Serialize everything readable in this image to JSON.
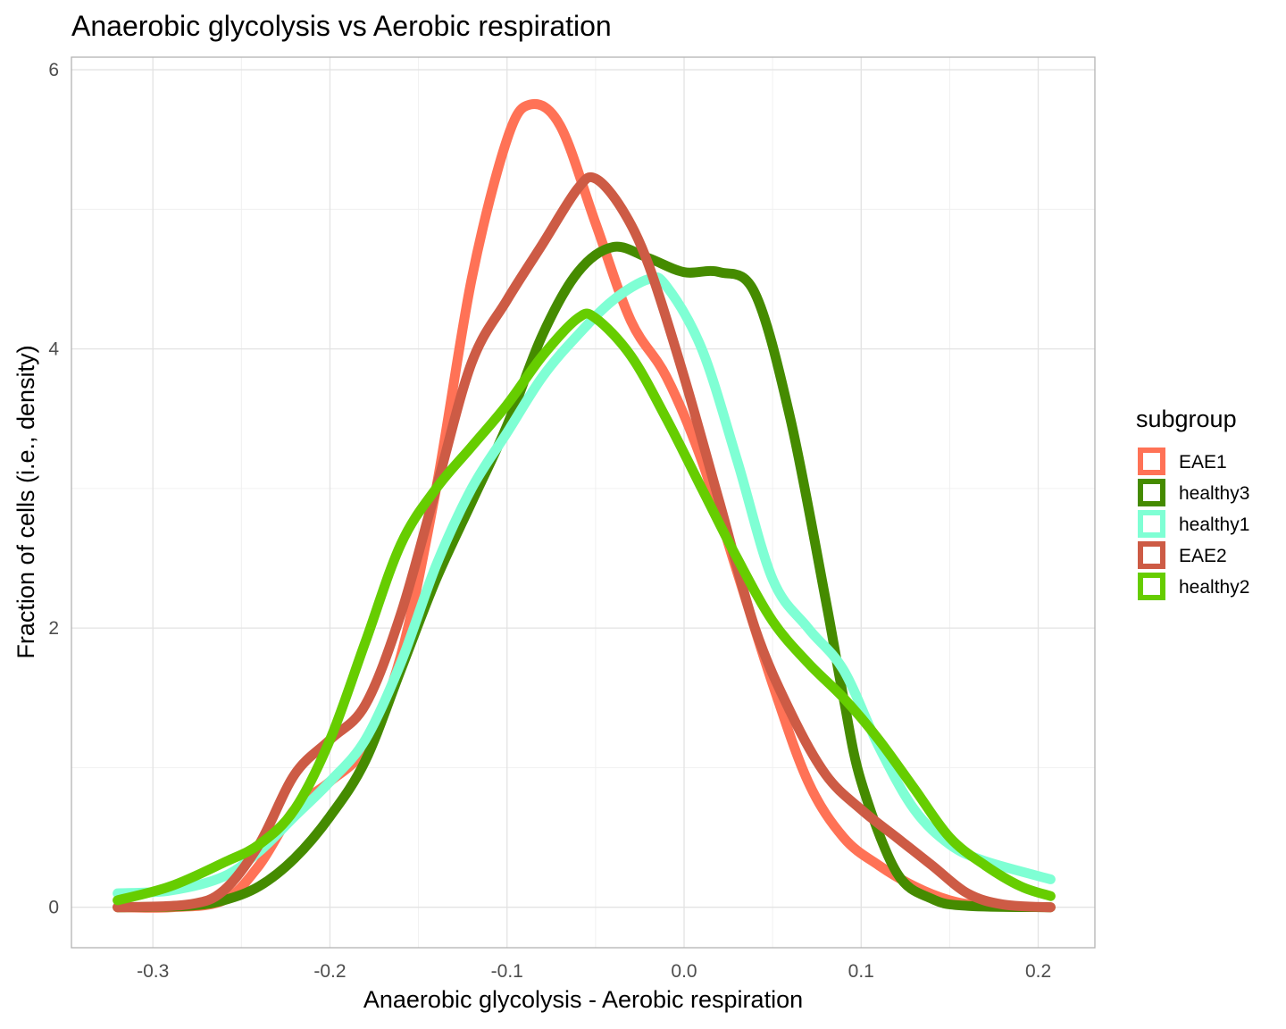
{
  "chart_data": {
    "type": "line",
    "title": "Anaerobic glycolysis vs Aerobic respiration",
    "xlabel": "Anaerobic glycolysis - Aerobic respiration",
    "ylabel": "Fraction of cells (i.e., density)",
    "xlim": [
      -0.346,
      0.232
    ],
    "ylim": [
      -0.29,
      6.09
    ],
    "x_ticks": [
      -0.3,
      -0.2,
      -0.1,
      0.0,
      0.1,
      0.2
    ],
    "x_tick_labels": [
      "-0.3",
      "-0.2",
      "-0.1",
      "0.0",
      "0.1",
      "0.2"
    ],
    "y_ticks": [
      0,
      2,
      4,
      6
    ],
    "y_tick_labels": [
      "0",
      "2",
      "4",
      "6"
    ],
    "grid": true,
    "legend": {
      "title": "subgroup",
      "position": "right"
    },
    "series": [
      {
        "name": "EAE1",
        "color": "#FF7256",
        "points": [
          [
            -0.32,
            0.0
          ],
          [
            -0.29,
            0.0
          ],
          [
            -0.26,
            0.05
          ],
          [
            -0.24,
            0.3
          ],
          [
            -0.22,
            0.7
          ],
          [
            -0.2,
            0.9
          ],
          [
            -0.18,
            1.15
          ],
          [
            -0.16,
            1.8
          ],
          [
            -0.14,
            3.0
          ],
          [
            -0.12,
            4.5
          ],
          [
            -0.1,
            5.5
          ],
          [
            -0.087,
            5.75
          ],
          [
            -0.07,
            5.6
          ],
          [
            -0.05,
            4.9
          ],
          [
            -0.03,
            4.2
          ],
          [
            -0.01,
            3.8
          ],
          [
            0.01,
            3.2
          ],
          [
            0.03,
            2.4
          ],
          [
            0.05,
            1.6
          ],
          [
            0.07,
            0.9
          ],
          [
            0.09,
            0.5
          ],
          [
            0.11,
            0.3
          ],
          [
            0.13,
            0.15
          ],
          [
            0.15,
            0.05
          ],
          [
            0.17,
            0.01
          ],
          [
            0.207,
            0.0
          ]
        ]
      },
      {
        "name": "healthy3",
        "color": "#458B00",
        "points": [
          [
            -0.32,
            0.0
          ],
          [
            -0.28,
            0.01
          ],
          [
            -0.26,
            0.05
          ],
          [
            -0.24,
            0.15
          ],
          [
            -0.22,
            0.35
          ],
          [
            -0.2,
            0.65
          ],
          [
            -0.18,
            1.05
          ],
          [
            -0.16,
            1.7
          ],
          [
            -0.14,
            2.35
          ],
          [
            -0.12,
            2.9
          ],
          [
            -0.1,
            3.45
          ],
          [
            -0.08,
            4.1
          ],
          [
            -0.06,
            4.55
          ],
          [
            -0.04,
            4.73
          ],
          [
            -0.02,
            4.65
          ],
          [
            0.0,
            4.55
          ],
          [
            0.02,
            4.55
          ],
          [
            0.04,
            4.4
          ],
          [
            0.06,
            3.5
          ],
          [
            0.08,
            2.2
          ],
          [
            0.09,
            1.5
          ],
          [
            0.1,
            0.9
          ],
          [
            0.12,
            0.25
          ],
          [
            0.14,
            0.06
          ],
          [
            0.16,
            0.01
          ],
          [
            0.207,
            0.0
          ]
        ]
      },
      {
        "name": "healthy1",
        "color": "#7FFFD4",
        "points": [
          [
            -0.32,
            0.1
          ],
          [
            -0.29,
            0.12
          ],
          [
            -0.26,
            0.22
          ],
          [
            -0.24,
            0.4
          ],
          [
            -0.22,
            0.65
          ],
          [
            -0.2,
            0.9
          ],
          [
            -0.18,
            1.2
          ],
          [
            -0.16,
            1.75
          ],
          [
            -0.14,
            2.45
          ],
          [
            -0.12,
            3.0
          ],
          [
            -0.1,
            3.4
          ],
          [
            -0.08,
            3.8
          ],
          [
            -0.06,
            4.1
          ],
          [
            -0.04,
            4.35
          ],
          [
            -0.02,
            4.5
          ],
          [
            -0.01,
            4.45
          ],
          [
            0.01,
            4.0
          ],
          [
            0.03,
            3.2
          ],
          [
            0.05,
            2.35
          ],
          [
            0.07,
            2.0
          ],
          [
            0.09,
            1.7
          ],
          [
            0.11,
            1.15
          ],
          [
            0.13,
            0.7
          ],
          [
            0.15,
            0.45
          ],
          [
            0.17,
            0.33
          ],
          [
            0.207,
            0.2
          ]
        ]
      },
      {
        "name": "EAE2",
        "color": "#CD5B45",
        "points": [
          [
            -0.32,
            0.0
          ],
          [
            -0.28,
            0.02
          ],
          [
            -0.26,
            0.12
          ],
          [
            -0.24,
            0.45
          ],
          [
            -0.22,
            0.95
          ],
          [
            -0.2,
            1.2
          ],
          [
            -0.18,
            1.45
          ],
          [
            -0.16,
            2.1
          ],
          [
            -0.14,
            3.0
          ],
          [
            -0.12,
            3.9
          ],
          [
            -0.1,
            4.35
          ],
          [
            -0.08,
            4.75
          ],
          [
            -0.06,
            5.15
          ],
          [
            -0.05,
            5.22
          ],
          [
            -0.035,
            5.0
          ],
          [
            -0.02,
            4.6
          ],
          [
            0.0,
            3.8
          ],
          [
            0.02,
            2.9
          ],
          [
            0.04,
            2.0
          ],
          [
            0.06,
            1.4
          ],
          [
            0.08,
            0.95
          ],
          [
            0.1,
            0.7
          ],
          [
            0.12,
            0.5
          ],
          [
            0.14,
            0.3
          ],
          [
            0.16,
            0.1
          ],
          [
            0.18,
            0.02
          ],
          [
            0.207,
            0.0
          ]
        ]
      },
      {
        "name": "healthy2",
        "color": "#66CD00",
        "points": [
          [
            -0.32,
            0.05
          ],
          [
            -0.29,
            0.15
          ],
          [
            -0.26,
            0.32
          ],
          [
            -0.24,
            0.45
          ],
          [
            -0.22,
            0.7
          ],
          [
            -0.2,
            1.2
          ],
          [
            -0.18,
            1.9
          ],
          [
            -0.16,
            2.6
          ],
          [
            -0.14,
            3.0
          ],
          [
            -0.12,
            3.3
          ],
          [
            -0.1,
            3.6
          ],
          [
            -0.08,
            3.95
          ],
          [
            -0.06,
            4.22
          ],
          [
            -0.05,
            4.22
          ],
          [
            -0.03,
            3.95
          ],
          [
            -0.01,
            3.5
          ],
          [
            0.01,
            3.0
          ],
          [
            0.03,
            2.5
          ],
          [
            0.05,
            2.05
          ],
          [
            0.07,
            1.75
          ],
          [
            0.09,
            1.5
          ],
          [
            0.11,
            1.2
          ],
          [
            0.13,
            0.85
          ],
          [
            0.15,
            0.5
          ],
          [
            0.17,
            0.3
          ],
          [
            0.19,
            0.15
          ],
          [
            0.207,
            0.08
          ]
        ]
      }
    ]
  }
}
